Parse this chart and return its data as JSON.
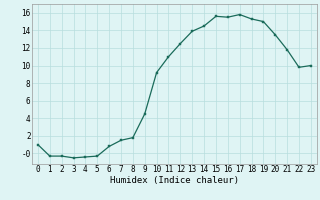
{
  "x": [
    0,
    1,
    2,
    3,
    4,
    5,
    6,
    7,
    8,
    9,
    10,
    11,
    12,
    13,
    14,
    15,
    16,
    17,
    18,
    19,
    20,
    21,
    22,
    23
  ],
  "y": [
    1.0,
    -0.3,
    -0.3,
    -0.5,
    -0.4,
    -0.3,
    0.8,
    1.5,
    1.8,
    4.5,
    9.2,
    11.0,
    12.5,
    13.9,
    14.5,
    15.6,
    15.5,
    15.8,
    15.3,
    15.0,
    13.5,
    11.8,
    9.8,
    10.0
  ],
  "line_color": "#1a6b5a",
  "marker_color": "#1a6b5a",
  "bg_color": "#dff4f4",
  "grid_color": "#b8dede",
  "xlabel": "Humidex (Indice chaleur)",
  "xlim": [
    -0.5,
    23.5
  ],
  "ylim": [
    -1.2,
    17
  ],
  "yticks": [
    0,
    2,
    4,
    6,
    8,
    10,
    12,
    14,
    16
  ],
  "xticks": [
    0,
    1,
    2,
    3,
    4,
    5,
    6,
    7,
    8,
    9,
    10,
    11,
    12,
    13,
    14,
    15,
    16,
    17,
    18,
    19,
    20,
    21,
    22,
    23
  ],
  "xtick_labels": [
    "0",
    "1",
    "2",
    "3",
    "4",
    "5",
    "6",
    "7",
    "8",
    "9",
    "10",
    "11",
    "12",
    "13",
    "14",
    "15",
    "16",
    "17",
    "18",
    "19",
    "20",
    "21",
    "22",
    "23"
  ],
  "ytick_labels": [
    "-0",
    "2",
    "4",
    "6",
    "8",
    "10",
    "12",
    "14",
    "16"
  ],
  "marker_size": 2.0,
  "line_width": 0.9,
  "xlabel_fontsize": 6.5,
  "tick_fontsize": 5.5
}
